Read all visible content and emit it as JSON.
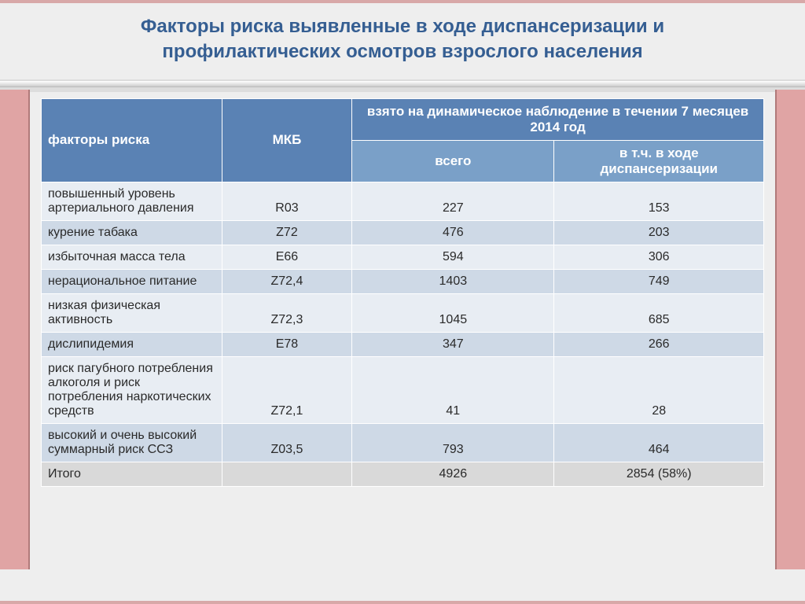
{
  "title": "Факторы риска выявленные  в ходе диспансеризации  и профилактических осмотров  взрослого населения",
  "table": {
    "headers": {
      "factor": "факторы риска",
      "mkb": "МКБ",
      "super": "взято на динамическое наблюдение в течении 7 месяцев 2014 год",
      "total": "всего",
      "disp": "в т.ч. в ходе диспансеризации"
    },
    "rows": [
      {
        "factor": "повышенный  уровень артериального давления",
        "mkb": "R03",
        "total": "227",
        "disp": "153",
        "shade": "light"
      },
      {
        "factor": "курение табака",
        "mkb": "Z72",
        "total": "476",
        "disp": "203",
        "shade": "dark"
      },
      {
        "factor": "избыточная  масса  тела",
        "mkb": "E66",
        "total": "594",
        "disp": "306",
        "shade": "light"
      },
      {
        "factor": "нерациональное питание",
        "mkb": "Z72,4",
        "total": "1403",
        "disp": "749",
        "shade": "dark"
      },
      {
        "factor": "низкая  физическая активность",
        "mkb": "Z72,3",
        "total": "1045",
        "disp": "685",
        "shade": "light"
      },
      {
        "factor": "дислипидемия",
        "mkb": "E78",
        "total": "347",
        "disp": "266",
        "shade": "dark"
      },
      {
        "factor": " риск  пагубного потребления алкоголя и риск  потребления наркотических  средств",
        "mkb": "Z72,1",
        "total": "41",
        "disp": "28",
        "shade": "light"
      },
      {
        "factor": "высокий и  очень высокий суммарный риск ССЗ",
        "mkb": "Z03,5",
        "total": "793",
        "disp": "464",
        "shade": "dark"
      }
    ],
    "summary": {
      "factor": "Итого",
      "mkb": "",
      "total": "4926",
      "disp": "2854  (58%)"
    },
    "colors": {
      "header_bg": "#5a82b4",
      "subheader_bg": "#7aa0c8",
      "row_light": "#e8edf3",
      "row_dark": "#ced9e6",
      "summary_bg": "#d9d9d9",
      "title_color": "#355e92",
      "slide_bg": "#eeeeee",
      "frame_bg": "#e0a4a4"
    },
    "font_sizes": {
      "title": 24,
      "header": 17,
      "body": 16
    }
  }
}
